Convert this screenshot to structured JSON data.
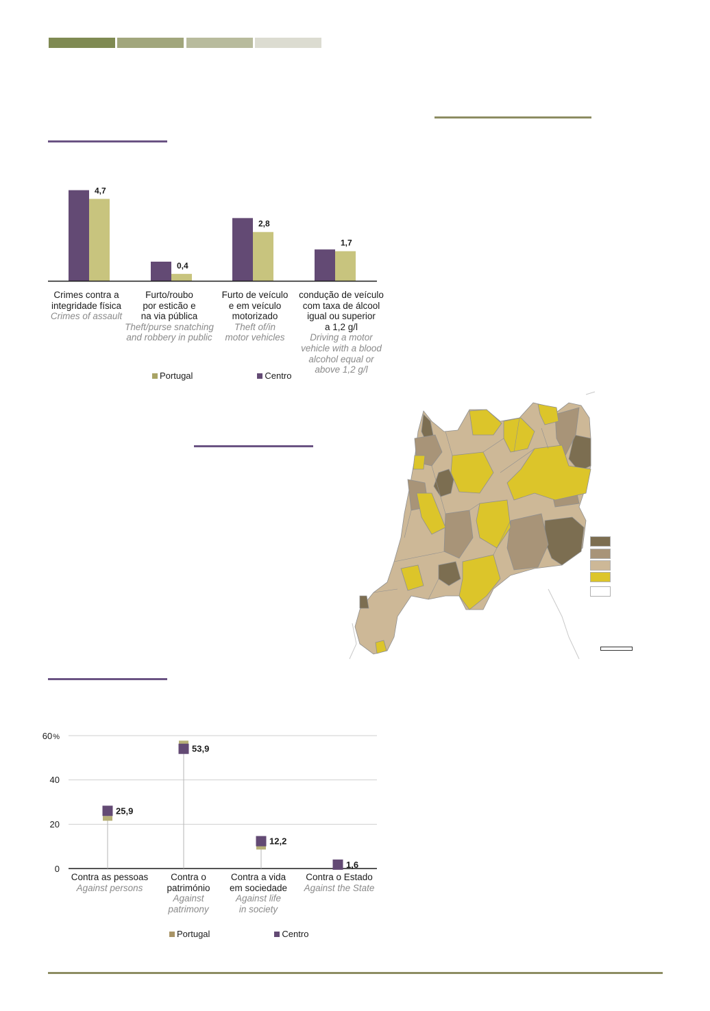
{
  "colors": {
    "header_1": "#7f8a52",
    "header_2": "#a1a67c",
    "header_3": "#b8bb9d",
    "header_4": "#dcdcd1",
    "rule_olive": "#8c8c62",
    "rule_purple": "#6a5383",
    "centro": "#634a74",
    "portugal_bar": "#c8c47e",
    "portugal_lollipop": "#b7b078",
    "map_c1": "#7c6e51",
    "map_c2": "#a89478",
    "map_c3": "#cdb897",
    "map_c4": "#dcc52a",
    "map_c5": "#ffffff"
  },
  "chart_data": [
    {
      "type": "bar",
      "categories": [
        {
          "pt": [
            "Crimes contra a",
            "integridade física"
          ],
          "en": [
            "Crimes of assault"
          ]
        },
        {
          "pt": [
            "Furto/roubo",
            "por esticão e",
            "na via pública"
          ],
          "en": [
            "Theft/purse snatching",
            "and robbery in public"
          ]
        },
        {
          "pt": [
            "Furto de veículo",
            "e em veículo",
            "motorizado"
          ],
          "en": [
            "Theft of/in",
            "motor vehicles"
          ]
        },
        {
          "pt": [
            "condução de veículo",
            "com taxa de álcool",
            "igual ou superior",
            "a 1,2 g/l"
          ],
          "en": [
            "Driving a motor",
            "vehicle with a blood",
            "alcohol equal or",
            "above 1,2 g/l"
          ]
        }
      ],
      "series": [
        {
          "name": "Centro",
          "values": [
            5.2,
            1.1,
            3.6,
            1.8
          ]
        },
        {
          "name": "Portugal",
          "values": [
            4.7,
            0.4,
            2.8,
            1.7
          ]
        }
      ],
      "data_labels": [
        "4,7",
        "0,4",
        "2,8",
        "1,7"
      ],
      "ylim": [
        0,
        5.5
      ],
      "legend": [
        "Portugal",
        "Centro"
      ],
      "legend_position": "bottom"
    },
    {
      "type": "scatter",
      "categories": [
        {
          "pt": [
            "Contra as pessoas"
          ],
          "en": [
            "Against persons"
          ]
        },
        {
          "pt": [
            "Contra o",
            "património"
          ],
          "en": [
            "Against",
            "patrimony"
          ]
        },
        {
          "pt": [
            "Contra a vida",
            "em sociedade"
          ],
          "en": [
            "Against life",
            "in society"
          ]
        },
        {
          "pt": [
            "Contra o Estado"
          ],
          "en": [
            "Against the State"
          ]
        }
      ],
      "series": [
        {
          "name": "Centro",
          "values": [
            25.9,
            53.9,
            12.2,
            1.6
          ]
        },
        {
          "name": "Portugal",
          "values": [
            22.5,
            56.5,
            9.5,
            1.8
          ]
        }
      ],
      "data_labels": [
        "25,9",
        "53,9",
        "12,2",
        "1,6"
      ],
      "yticks": [
        "0",
        "20",
        "40",
        "60"
      ],
      "y_unit": "%",
      "ylim": [
        0,
        60
      ],
      "grid": true,
      "legend": [
        "Portugal",
        "Centro"
      ],
      "legend_position": "bottom"
    }
  ]
}
